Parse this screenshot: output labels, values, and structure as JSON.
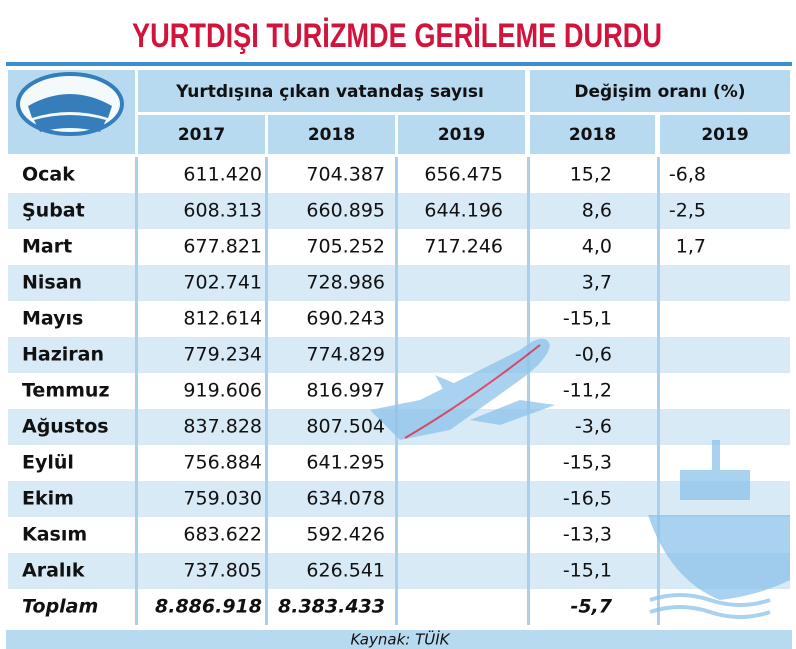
{
  "title": "YURTDIŞI TURİZMDE GERİLEME DURDU",
  "table": {
    "group_headers": [
      "Yurtdışına çıkan vatandaş sayısı",
      "Değişim oranı (%)"
    ],
    "year_headers": [
      "2017",
      "2018",
      "2019",
      "2018",
      "2019"
    ],
    "rows": [
      [
        "Ocak",
        "611.420",
        "704.387",
        "656.475",
        "15,2",
        "-6,8"
      ],
      [
        "Şubat",
        "608.313",
        "660.895",
        "644.196",
        "8,6",
        "-2,5"
      ],
      [
        "Mart",
        "677.821",
        "705.252",
        "717.246",
        "4,0",
        "1,7"
      ],
      [
        "Nisan",
        "702.741",
        "728.986",
        null,
        "3,7",
        null
      ],
      [
        "Mayıs",
        "812.614",
        "690.243",
        null,
        "-15,1",
        null
      ],
      [
        "Haziran",
        "779.234",
        "774.829",
        null,
        "-0,6",
        null
      ],
      [
        "Temmuz",
        "919.606",
        "816.997",
        null,
        "-11,2",
        null
      ],
      [
        "Ağustos",
        "837.828",
        "807.504",
        null,
        "-3,6",
        null
      ],
      [
        "Eylül",
        "756.884",
        "641.295",
        null,
        "-15,3",
        null
      ],
      [
        "Ekim",
        "759.030",
        "634.078",
        null,
        "-16,5",
        null
      ],
      [
        "Kasım",
        "683.622",
        "592.426",
        null,
        "-13,3",
        null
      ],
      [
        "Aralık",
        "737.805",
        "626.541",
        null,
        "-15,1",
        null
      ],
      [
        "Toplam",
        "8.886.918",
        "8.383.433",
        null,
        "-5,7",
        null
      ]
    ]
  },
  "source": "Kaynak: TÜİK"
}
